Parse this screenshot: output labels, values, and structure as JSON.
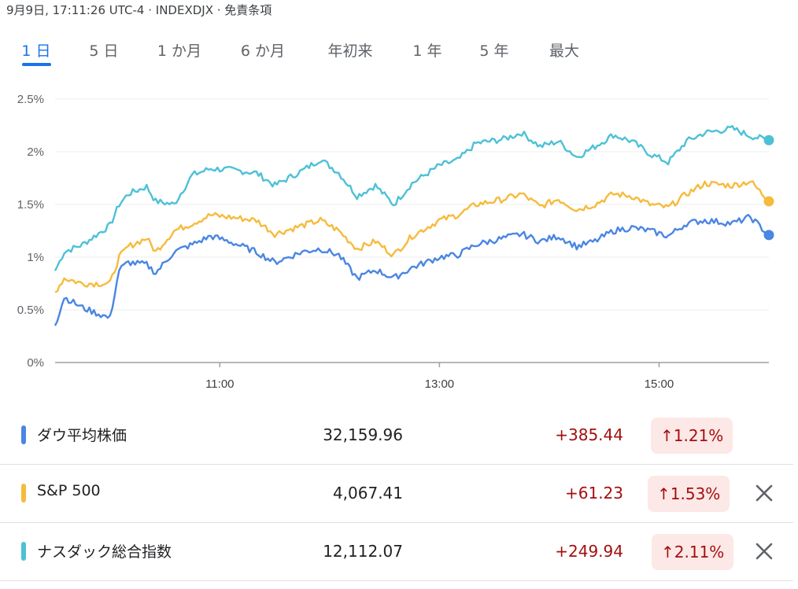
{
  "meta": {
    "timestamp": "9月9日, 17:11:26 UTC-4",
    "sep": " · ",
    "symbol": "INDEXDJX",
    "disclaimer": "免責条項"
  },
  "tabs": [
    "1 日",
    "5 日",
    "1 か月",
    "6 か月",
    "年初来",
    "1 年",
    "5 年",
    "最大"
  ],
  "active_tab": 0,
  "chart_data": {
    "type": "line",
    "x_ticks": [
      "11:00",
      "13:00",
      "15:00"
    ],
    "x_range": [
      "09:30",
      "16:00"
    ],
    "y_ticks": [
      "0%",
      "0.5%",
      "1%",
      "1.5%",
      "2%",
      "2.5%"
    ],
    "ylim": [
      0,
      2.5
    ],
    "grid": true,
    "series": [
      {
        "color": "#4cc1d6",
        "points": [
          [
            "09:30",
            0.87
          ],
          [
            "09:35",
            1.05
          ],
          [
            "09:45",
            1.12
          ],
          [
            "10:00",
            1.3
          ],
          [
            "10:05",
            1.5
          ],
          [
            "10:10",
            1.6
          ],
          [
            "10:20",
            1.67
          ],
          [
            "10:25",
            1.53
          ],
          [
            "10:35",
            1.5
          ],
          [
            "10:45",
            1.78
          ],
          [
            "10:55",
            1.84
          ],
          [
            "11:05",
            1.83
          ],
          [
            "11:20",
            1.8
          ],
          [
            "11:30",
            1.68
          ],
          [
            "11:45",
            1.82
          ],
          [
            "11:55",
            1.93
          ],
          [
            "12:05",
            1.8
          ],
          [
            "12:15",
            1.58
          ],
          [
            "12:25",
            1.68
          ],
          [
            "12:35",
            1.5
          ],
          [
            "12:45",
            1.7
          ],
          [
            "13:00",
            1.87
          ],
          [
            "13:10",
            1.92
          ],
          [
            "13:20",
            2.08
          ],
          [
            "13:35",
            2.12
          ],
          [
            "13:45",
            2.18
          ],
          [
            "13:55",
            2.05
          ],
          [
            "14:05",
            2.1
          ],
          [
            "14:15",
            1.95
          ],
          [
            "14:25",
            2.05
          ],
          [
            "14:35",
            2.16
          ],
          [
            "14:45",
            2.1
          ],
          [
            "14:55",
            1.98
          ],
          [
            "15:05",
            1.9
          ],
          [
            "15:15",
            2.1
          ],
          [
            "15:25",
            2.18
          ],
          [
            "15:40",
            2.22
          ],
          [
            "15:50",
            2.15
          ],
          [
            "16:00",
            2.11
          ]
        ]
      },
      {
        "color": "#f6bb3c",
        "points": [
          [
            "09:30",
            0.67
          ],
          [
            "09:35",
            0.8
          ],
          [
            "09:45",
            0.75
          ],
          [
            "10:00",
            0.75
          ],
          [
            "10:05",
            1.0
          ],
          [
            "10:10",
            1.1
          ],
          [
            "10:20",
            1.18
          ],
          [
            "10:25",
            1.05
          ],
          [
            "10:35",
            1.25
          ],
          [
            "10:45",
            1.32
          ],
          [
            "10:55",
            1.4
          ],
          [
            "11:05",
            1.38
          ],
          [
            "11:20",
            1.35
          ],
          [
            "11:30",
            1.22
          ],
          [
            "11:45",
            1.3
          ],
          [
            "11:55",
            1.35
          ],
          [
            "12:05",
            1.25
          ],
          [
            "12:15",
            1.08
          ],
          [
            "12:25",
            1.15
          ],
          [
            "12:35",
            1.02
          ],
          [
            "12:45",
            1.2
          ],
          [
            "13:00",
            1.35
          ],
          [
            "13:10",
            1.4
          ],
          [
            "13:20",
            1.5
          ],
          [
            "13:35",
            1.55
          ],
          [
            "13:45",
            1.6
          ],
          [
            "13:55",
            1.48
          ],
          [
            "14:05",
            1.55
          ],
          [
            "14:15",
            1.45
          ],
          [
            "14:25",
            1.5
          ],
          [
            "14:35",
            1.6
          ],
          [
            "14:45",
            1.58
          ],
          [
            "14:55",
            1.5
          ],
          [
            "15:05",
            1.47
          ],
          [
            "15:15",
            1.6
          ],
          [
            "15:25",
            1.7
          ],
          [
            "15:40",
            1.68
          ],
          [
            "15:50",
            1.72
          ],
          [
            "16:00",
            1.53
          ]
        ]
      },
      {
        "color": "#4a86e2",
        "points": [
          [
            "09:30",
            0.35
          ],
          [
            "09:35",
            0.62
          ],
          [
            "09:45",
            0.52
          ],
          [
            "10:00",
            0.42
          ],
          [
            "10:05",
            0.88
          ],
          [
            "10:10",
            0.95
          ],
          [
            "10:20",
            0.93
          ],
          [
            "10:25",
            0.85
          ],
          [
            "10:35",
            1.05
          ],
          [
            "10:45",
            1.12
          ],
          [
            "10:55",
            1.2
          ],
          [
            "11:05",
            1.15
          ],
          [
            "11:20",
            1.05
          ],
          [
            "11:30",
            0.95
          ],
          [
            "11:45",
            1.05
          ],
          [
            "11:55",
            1.08
          ],
          [
            "12:05",
            1.02
          ],
          [
            "12:15",
            0.8
          ],
          [
            "12:25",
            0.88
          ],
          [
            "12:35",
            0.8
          ],
          [
            "12:45",
            0.9
          ],
          [
            "13:00",
            1.0
          ],
          [
            "13:10",
            1.02
          ],
          [
            "13:20",
            1.12
          ],
          [
            "13:35",
            1.18
          ],
          [
            "13:45",
            1.22
          ],
          [
            "13:55",
            1.15
          ],
          [
            "14:05",
            1.2
          ],
          [
            "14:15",
            1.1
          ],
          [
            "14:25",
            1.15
          ],
          [
            "14:35",
            1.25
          ],
          [
            "14:45",
            1.28
          ],
          [
            "14:55",
            1.25
          ],
          [
            "15:05",
            1.2
          ],
          [
            "15:15",
            1.32
          ],
          [
            "15:25",
            1.35
          ],
          [
            "15:40",
            1.32
          ],
          [
            "15:50",
            1.38
          ],
          [
            "16:00",
            1.21
          ]
        ]
      }
    ]
  },
  "indices": [
    {
      "name": "ダウ平均株価",
      "price": "32,159.96",
      "change": "+385.44",
      "percent": "1.21%",
      "color": "#4a86e2",
      "removable": false
    },
    {
      "name": "S&P 500",
      "price": "4,067.41",
      "change": "+61.23",
      "percent": "1.53%",
      "color": "#f6bb3c",
      "removable": true
    },
    {
      "name": "ナスダック総合指数",
      "price": "12,112.07",
      "change": "+249.94",
      "percent": "2.11%",
      "color": "#4cc1d6",
      "removable": true
    }
  ]
}
